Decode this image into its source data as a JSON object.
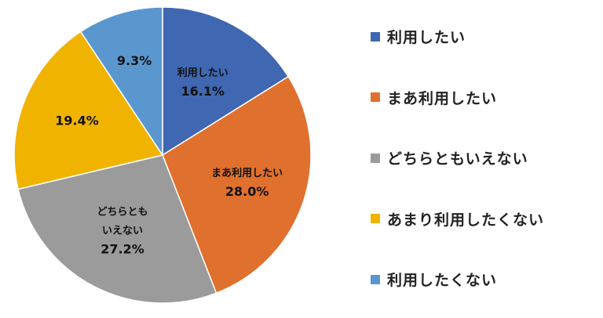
{
  "chart_data": {
    "type": "pie",
    "categories": [
      "利用したい",
      "まあ利用したい",
      "どちらともいえない",
      "あまり利用したくない",
      "利用したくない"
    ],
    "values": [
      16.1,
      28.0,
      27.2,
      19.4,
      9.3
    ],
    "value_labels": [
      "16.1%",
      "28.0%",
      "27.2%",
      "19.4%",
      "9.3%"
    ],
    "slice_text": [
      [
        "利用したい"
      ],
      [
        "まあ利用したい"
      ],
      [
        "どちらとも",
        "いえない"
      ],
      [],
      []
    ],
    "colors": [
      "#4067b1",
      "#e0702d",
      "#9b9b9b",
      "#f0b400",
      "#5b97cf"
    ],
    "start_angle_deg": 0,
    "direction": "clockwise",
    "legend_position": "right"
  }
}
